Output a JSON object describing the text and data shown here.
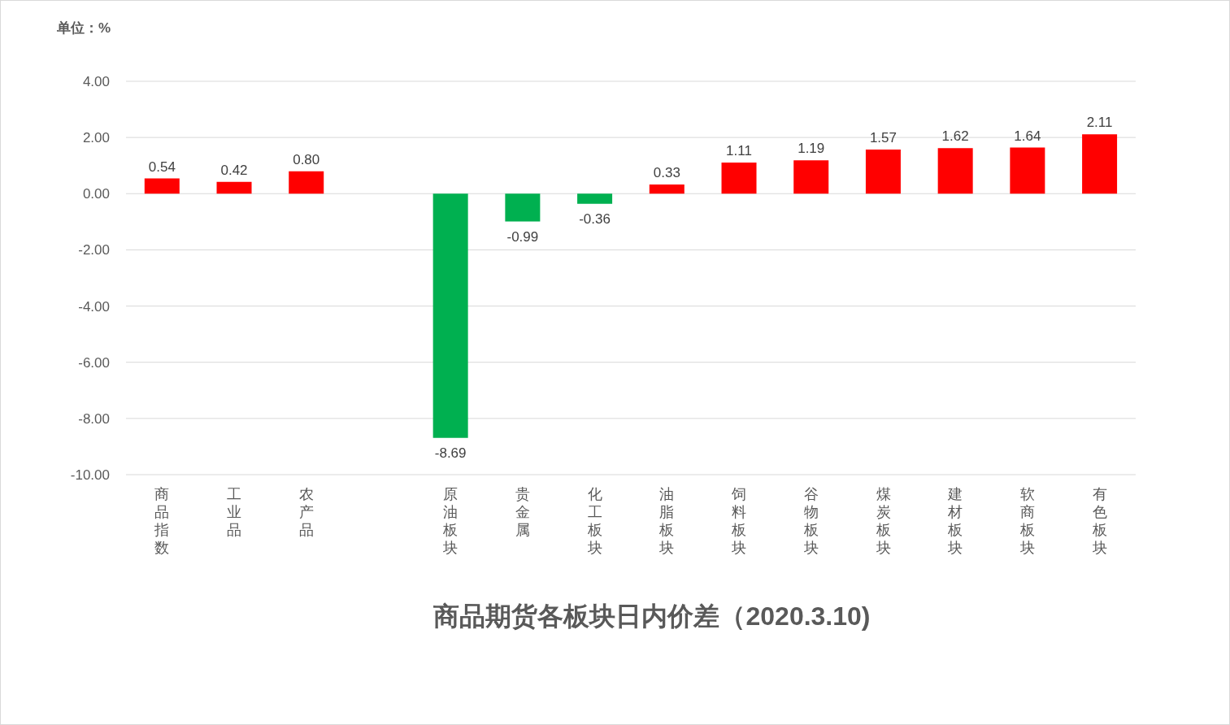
{
  "chart_data": {
    "type": "bar",
    "title": "商品期货各板块日内价差（2020.3.10)",
    "ylabel": "单位：%",
    "categories": [
      "商品指数",
      "工业品",
      "农产品",
      null,
      "原油板块",
      "贵金属",
      "化工板块",
      "油脂板块",
      "饲料板块",
      "谷物板块",
      "煤炭板块",
      "建材板块",
      "软商板块",
      "有色板块"
    ],
    "values": [
      0.54,
      0.42,
      0.8,
      null,
      -8.69,
      -0.99,
      -0.36,
      0.33,
      1.11,
      1.19,
      1.57,
      1.62,
      1.64,
      2.11
    ],
    "colors": [
      "#ff0000",
      "#ff0000",
      "#ff0000",
      null,
      "#00b050",
      "#00b050",
      "#00b050",
      "#ff0000",
      "#ff0000",
      "#ff0000",
      "#ff0000",
      "#ff0000",
      "#ff0000",
      "#ff0000"
    ],
    "value_labels": [
      "0.54",
      "0.42",
      "0.80",
      null,
      "-8.69",
      "-0.99",
      "-0.36",
      "0.33",
      "1.11",
      "1.19",
      "1.57",
      "1.62",
      "1.64",
      "2.11"
    ],
    "ylim": [
      -10,
      4
    ],
    "yticks": [
      {
        "value": -10,
        "label": "-10.00"
      },
      {
        "value": -8,
        "label": "-8.00"
      },
      {
        "value": -6,
        "label": "-6.00"
      },
      {
        "value": -4,
        "label": "-4.00"
      },
      {
        "value": -2,
        "label": "-2.00"
      },
      {
        "value": 0,
        "label": "0.00"
      },
      {
        "value": 2,
        "label": "2.00"
      },
      {
        "value": 4,
        "label": "4.00"
      }
    ],
    "grid": "y"
  }
}
